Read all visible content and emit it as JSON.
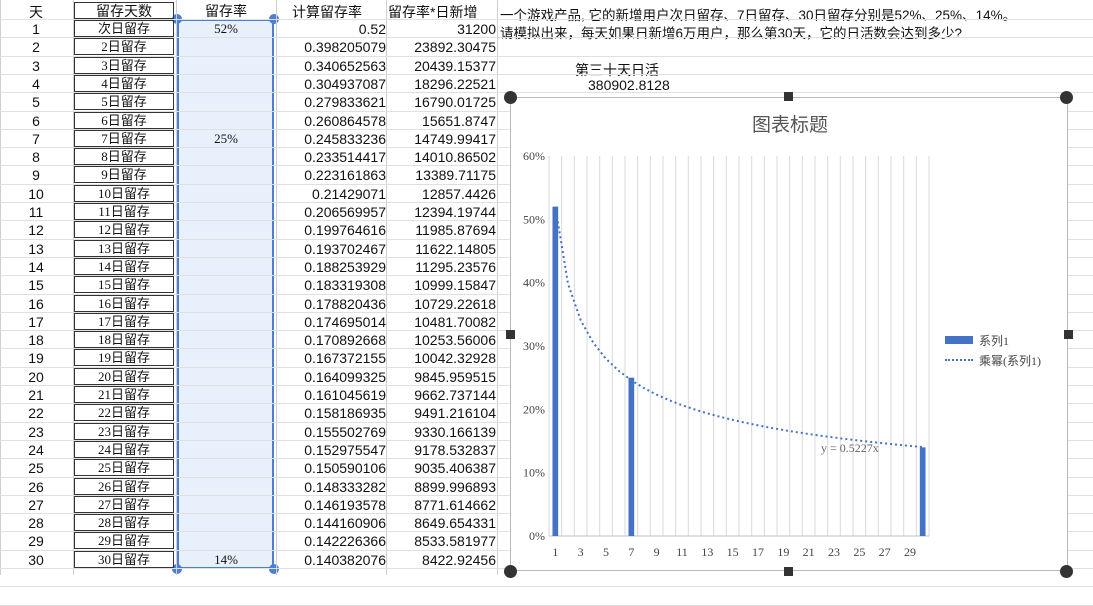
{
  "headers": {
    "day": "天",
    "label": "留存天数",
    "rate": "留存率",
    "calc": "计算留存率",
    "prod": "留存率*日新增"
  },
  "question": {
    "line1": "一个游戏产品, 它的新增用户次日留存、7日留存、30日留存分别是52%、25%、14%。",
    "line2": "请模拟出来，每天如果日新增6万用户，那么第30天，它的日活数会达到多少?"
  },
  "dau": {
    "title": "第三十天日活",
    "value": "380902.8128"
  },
  "rows": [
    {
      "day": "1",
      "label": "次日留存",
      "rate": "52%",
      "calc": "0.52",
      "prod": "31200"
    },
    {
      "day": "2",
      "label": "2日留存",
      "rate": "",
      "calc": "0.398205079",
      "prod": "23892.30475"
    },
    {
      "day": "3",
      "label": "3日留存",
      "rate": "",
      "calc": "0.340652563",
      "prod": "20439.15377"
    },
    {
      "day": "4",
      "label": "4日留存",
      "rate": "",
      "calc": "0.304937087",
      "prod": "18296.22521"
    },
    {
      "day": "5",
      "label": "5日留存",
      "rate": "",
      "calc": "0.279833621",
      "prod": "16790.01725"
    },
    {
      "day": "6",
      "label": "6日留存",
      "rate": "",
      "calc": "0.260864578",
      "prod": "15651.8747"
    },
    {
      "day": "7",
      "label": "7日留存",
      "rate": "25%",
      "calc": "0.245833236",
      "prod": "14749.99417"
    },
    {
      "day": "8",
      "label": "8日留存",
      "rate": "",
      "calc": "0.233514417",
      "prod": "14010.86502"
    },
    {
      "day": "9",
      "label": "9日留存",
      "rate": "",
      "calc": "0.223161863",
      "prod": "13389.71175"
    },
    {
      "day": "10",
      "label": "10日留存",
      "rate": "",
      "calc": "0.21429071",
      "prod": "12857.4426"
    },
    {
      "day": "11",
      "label": "11日留存",
      "rate": "",
      "calc": "0.206569957",
      "prod": "12394.19744"
    },
    {
      "day": "12",
      "label": "12日留存",
      "rate": "",
      "calc": "0.199764616",
      "prod": "11985.87694"
    },
    {
      "day": "13",
      "label": "13日留存",
      "rate": "",
      "calc": "0.193702467",
      "prod": "11622.14805"
    },
    {
      "day": "14",
      "label": "14日留存",
      "rate": "",
      "calc": "0.188253929",
      "prod": "11295.23576"
    },
    {
      "day": "15",
      "label": "15日留存",
      "rate": "",
      "calc": "0.183319308",
      "prod": "10999.15847"
    },
    {
      "day": "16",
      "label": "16日留存",
      "rate": "",
      "calc": "0.178820436",
      "prod": "10729.22618"
    },
    {
      "day": "17",
      "label": "17日留存",
      "rate": "",
      "calc": "0.174695014",
      "prod": "10481.70082"
    },
    {
      "day": "18",
      "label": "18日留存",
      "rate": "",
      "calc": "0.170892668",
      "prod": "10253.56006"
    },
    {
      "day": "19",
      "label": "19日留存",
      "rate": "",
      "calc": "0.167372155",
      "prod": "10042.32928"
    },
    {
      "day": "20",
      "label": "20日留存",
      "rate": "",
      "calc": "0.164099325",
      "prod": "9845.959515"
    },
    {
      "day": "21",
      "label": "21日留存",
      "rate": "",
      "calc": "0.161045619",
      "prod": "9662.737144"
    },
    {
      "day": "22",
      "label": "22日留存",
      "rate": "",
      "calc": "0.158186935",
      "prod": "9491.216104"
    },
    {
      "day": "23",
      "label": "23日留存",
      "rate": "",
      "calc": "0.155502769",
      "prod": "9330.166139"
    },
    {
      "day": "24",
      "label": "24日留存",
      "rate": "",
      "calc": "0.152975547",
      "prod": "9178.532837"
    },
    {
      "day": "25",
      "label": "25日留存",
      "rate": "",
      "calc": "0.150590106",
      "prod": "9035.406387"
    },
    {
      "day": "26",
      "label": "26日留存",
      "rate": "",
      "calc": "0.148333282",
      "prod": "8899.996893"
    },
    {
      "day": "27",
      "label": "27日留存",
      "rate": "",
      "calc": "0.146193578",
      "prod": "8771.614662"
    },
    {
      "day": "28",
      "label": "28日留存",
      "rate": "",
      "calc": "0.144160906",
      "prod": "8649.654331"
    },
    {
      "day": "29",
      "label": "29日留存",
      "rate": "",
      "calc": "0.142226366",
      "prod": "8533.581977"
    },
    {
      "day": "30",
      "label": "30日留存",
      "rate": "14%",
      "calc": "0.140382076",
      "prod": "8422.92456"
    }
  ],
  "chart_data": {
    "type": "bar",
    "title": "图表标题",
    "x": [
      1,
      2,
      3,
      4,
      5,
      6,
      7,
      8,
      9,
      10,
      11,
      12,
      13,
      14,
      15,
      16,
      17,
      18,
      19,
      20,
      21,
      22,
      23,
      24,
      25,
      26,
      27,
      28,
      29,
      30
    ],
    "x_tick_labels": [
      "1",
      "3",
      "5",
      "7",
      "9",
      "11",
      "13",
      "15",
      "17",
      "19",
      "21",
      "23",
      "25",
      "27",
      "29"
    ],
    "y_tick_labels": [
      "0%",
      "10%",
      "20%",
      "30%",
      "40%",
      "50%",
      "60%"
    ],
    "ylim": [
      0,
      0.6
    ],
    "grid": "vertical",
    "legend_position": "right",
    "series": [
      {
        "name": "系列1",
        "type": "bar",
        "points": [
          {
            "x": 1,
            "y": 0.52
          },
          {
            "x": 7,
            "y": 0.25
          },
          {
            "x": 30,
            "y": 0.14
          }
        ]
      },
      {
        "name": "乘幂(系列1)",
        "type": "trendline-dotted",
        "values": [
          0.52,
          0.398205079,
          0.340652563,
          0.304937087,
          0.279833621,
          0.260864578,
          0.245833236,
          0.233514417,
          0.223161863,
          0.21429071,
          0.206569957,
          0.199764616,
          0.193702467,
          0.188253929,
          0.183319308,
          0.178820436,
          0.174695014,
          0.170892668,
          0.167372155,
          0.164099325,
          0.161045619,
          0.158186935,
          0.155502769,
          0.152975547,
          0.150590106,
          0.148333282,
          0.146193578,
          0.144160906,
          0.142226366,
          0.140382076
        ]
      }
    ],
    "annotation": "y = 0.5227x",
    "color": "#4472c4"
  }
}
